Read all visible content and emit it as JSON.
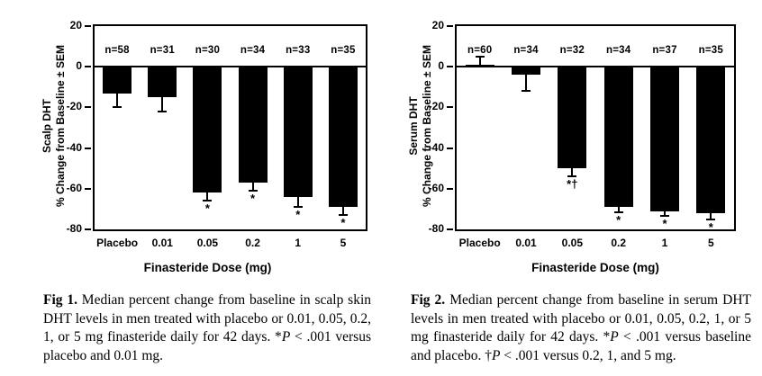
{
  "colors": {
    "bar": "#000000",
    "axis": "#000000",
    "background": "#ffffff",
    "text": "#000000"
  },
  "chart_data": [
    {
      "type": "bar",
      "title": "",
      "xlabel": "Finasteride Dose (mg)",
      "ylabel": "Scalp DHT % Change from Baseline ± SEM",
      "ylabel_line1": "Scalp DHT",
      "ylabel_line2": "% Change from Baseline ± SEM",
      "categories": [
        "Placebo",
        "0.01",
        "0.05",
        "0.2",
        "1",
        "5"
      ],
      "values": [
        -13,
        -15,
        -62,
        -57,
        -64,
        -69
      ],
      "sem": [
        7,
        7,
        4,
        4,
        5,
        4
      ],
      "n_labels": [
        "n=58",
        "n=31",
        "n=30",
        "n=34",
        "n=33",
        "n=35"
      ],
      "sig_marks": [
        "",
        "",
        "*",
        "*",
        "*",
        "*"
      ],
      "ylim": [
        -80,
        20
      ],
      "yticks": [
        20,
        0,
        -20,
        -40,
        -60,
        -80
      ],
      "grid": false,
      "legend": "none",
      "bar_color": "#000000",
      "caption_label": "Fig 1.",
      "caption_parts": [
        " Median percent change from baseline in scalp skin DHT levels in men treated with placebo or 0.01, 0.05, 0.2, 1, or 5 mg finasteride daily for 42 days. *",
        "P",
        " < .001 versus placebo and 0.01 mg."
      ]
    },
    {
      "type": "bar",
      "title": "",
      "xlabel": "Finasteride Dose (mg)",
      "ylabel": "Serum DHT % Change from Baseline ± SEM",
      "ylabel_line1": "Serum DHT",
      "ylabel_line2": "% Change from Baseline ± SEM",
      "categories": [
        "Placebo",
        "0.01",
        "0.05",
        "0.2",
        "1",
        "5"
      ],
      "values": [
        1,
        -4,
        -50,
        -69,
        -71,
        -72
      ],
      "sem": [
        4,
        8,
        4,
        2.5,
        2.5,
        3
      ],
      "n_labels": [
        "n=60",
        "n=34",
        "n=32",
        "n=34",
        "n=37",
        "n=35"
      ],
      "sig_marks": [
        "",
        "",
        "*†",
        "*",
        "*",
        "*"
      ],
      "ylim": [
        -80,
        20
      ],
      "yticks": [
        20,
        0,
        -20,
        -40,
        -60,
        -80
      ],
      "grid": false,
      "legend": "none",
      "bar_color": "#000000",
      "caption_label": "Fig 2.",
      "caption_parts": [
        " Median percent change from baseline in serum DHT levels in men treated with placebo or 0.01, 0.05, 0.2, 1, or 5 mg finasteride daily for 42 days. *",
        "P",
        " < .001 versus baseline and placebo. †",
        "P",
        " < .001 versus 0.2, 1, and 5 mg."
      ]
    }
  ]
}
